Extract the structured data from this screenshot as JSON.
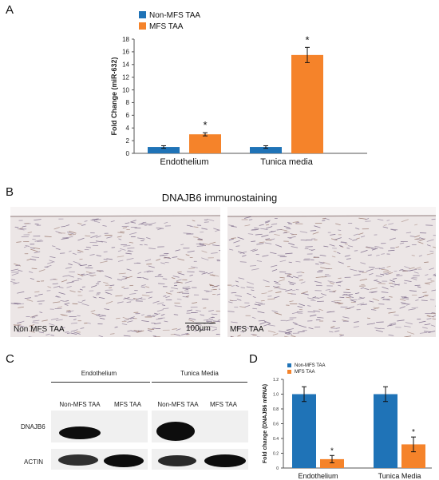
{
  "panels": {
    "a": "A",
    "b": "B",
    "c": "C",
    "d": "D"
  },
  "colors": {
    "non_mfs": "#1f73b7",
    "mfs": "#f5832a",
    "tissue_bg": "#ece6e6",
    "tissue_cell": "#7f6d8c",
    "blot_bg": "#f0f0f0",
    "band": "#0d0d0d"
  },
  "chart_data": [
    {
      "panel": "A",
      "type": "bar",
      "categories": [
        "Endothelium",
        "Tunica media"
      ],
      "series": [
        {
          "name": "Non-MFS TAA",
          "values": [
            1.0,
            1.0
          ],
          "errors": [
            0.2,
            0.2
          ]
        },
        {
          "name": "MFS TAA",
          "values": [
            3.0,
            15.5
          ],
          "errors": [
            0.25,
            1.2
          ]
        }
      ],
      "ylabel": "Fold Change (miR-632)",
      "ylim": [
        0,
        18
      ],
      "yticks": [
        0,
        2,
        4,
        6,
        8,
        10,
        12,
        14,
        16,
        18
      ],
      "significance": [
        {
          "category": "Endothelium",
          "series": "MFS TAA",
          "mark": "*"
        },
        {
          "category": "Tunica media",
          "series": "MFS TAA",
          "mark": "*"
        }
      ],
      "legend": "top-left",
      "grid": false
    },
    {
      "panel": "D",
      "type": "bar",
      "categories": [
        "Endothelium",
        "Tunica Media"
      ],
      "series": [
        {
          "name": "Non-MFS TAA",
          "values": [
            1.0,
            1.0
          ],
          "errors": [
            0.1,
            0.1
          ]
        },
        {
          "name": "MFS TAA",
          "values": [
            0.12,
            0.32
          ],
          "errors": [
            0.05,
            0.1
          ]
        }
      ],
      "ylabel": "Fold change (DNAJB6 mRNA)",
      "ylim": [
        0,
        1.2
      ],
      "yticks": [
        "0",
        "0.2",
        "0.4",
        "0.6",
        "0.8",
        "1.0",
        "1.2"
      ],
      "significance": [
        {
          "category": "Endothelium",
          "series": "MFS TAA",
          "mark": "*"
        },
        {
          "category": "Tunica Media",
          "series": "MFS TAA",
          "mark": "*"
        }
      ],
      "legend": "top-left",
      "grid": false
    }
  ],
  "immuno": {
    "title": "DNAJB6 immunostaining",
    "left_label": "Non MFS TAA",
    "right_label": "MFS TAA",
    "scale_bar": "100µm"
  },
  "blot": {
    "groups": [
      "Endothelium",
      "Tunica Media"
    ],
    "lanes": [
      "Non-MFS TAA",
      "MFS TAA",
      "Non-MFS TAA",
      "MFS TAA"
    ],
    "rows": [
      "DNAJB6",
      "ACTIN"
    ]
  }
}
